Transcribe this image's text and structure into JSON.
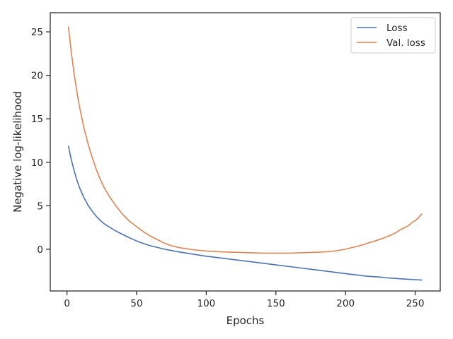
{
  "chart_data": {
    "type": "line",
    "xlabel": "Epochs",
    "ylabel": "Negative log-likelihood",
    "xlim": [
      -12,
      268
    ],
    "ylim": [
      -4.8,
      27.2
    ],
    "xticks": [
      0,
      50,
      100,
      150,
      200,
      250
    ],
    "yticks": [
      0,
      5,
      10,
      15,
      20,
      25
    ],
    "grid": false,
    "legend_position": "top-right",
    "series": [
      {
        "name": "Loss",
        "color": "#4c72b0",
        "x": [
          1,
          3,
          5,
          7,
          9,
          12,
          15,
          18,
          21,
          24,
          27,
          30,
          35,
          40,
          45,
          50,
          55,
          60,
          65,
          70,
          75,
          80,
          90,
          100,
          110,
          120,
          130,
          140,
          150,
          160,
          170,
          180,
          190,
          200,
          210,
          215,
          220,
          225,
          230,
          235,
          240,
          245,
          250,
          255
        ],
        "y": [
          11.9,
          10.4,
          9.1,
          8.0,
          7.1,
          6.0,
          5.1,
          4.4,
          3.8,
          3.3,
          2.9,
          2.6,
          2.1,
          1.7,
          1.3,
          0.95,
          0.65,
          0.4,
          0.2,
          0.0,
          -0.15,
          -0.3,
          -0.55,
          -0.8,
          -1.0,
          -1.2,
          -1.4,
          -1.6,
          -1.8,
          -2.0,
          -2.2,
          -2.4,
          -2.6,
          -2.8,
          -3.0,
          -3.1,
          -3.15,
          -3.2,
          -3.3,
          -3.35,
          -3.4,
          -3.45,
          -3.5,
          -3.55
        ]
      },
      {
        "name": "Val. loss",
        "color": "#dd8452",
        "x": [
          1,
          3,
          5,
          7,
          9,
          12,
          15,
          18,
          21,
          24,
          27,
          30,
          35,
          40,
          45,
          50,
          55,
          60,
          65,
          70,
          75,
          80,
          90,
          100,
          110,
          120,
          130,
          140,
          150,
          160,
          170,
          180,
          190,
          200,
          205,
          210,
          215,
          220,
          225,
          230,
          235,
          240,
          245,
          248,
          250,
          252,
          255
        ],
        "y": [
          25.6,
          22.8,
          20.3,
          18.2,
          16.4,
          14.1,
          12.2,
          10.6,
          9.2,
          8.0,
          7.0,
          6.2,
          5.0,
          4.0,
          3.2,
          2.6,
          2.0,
          1.5,
          1.1,
          0.7,
          0.4,
          0.2,
          -0.05,
          -0.2,
          -0.3,
          -0.35,
          -0.4,
          -0.45,
          -0.45,
          -0.45,
          -0.4,
          -0.35,
          -0.25,
          0.0,
          0.2,
          0.4,
          0.65,
          0.9,
          1.15,
          1.45,
          1.8,
          2.3,
          2.7,
          3.1,
          3.3,
          3.55,
          4.1
        ]
      }
    ]
  }
}
